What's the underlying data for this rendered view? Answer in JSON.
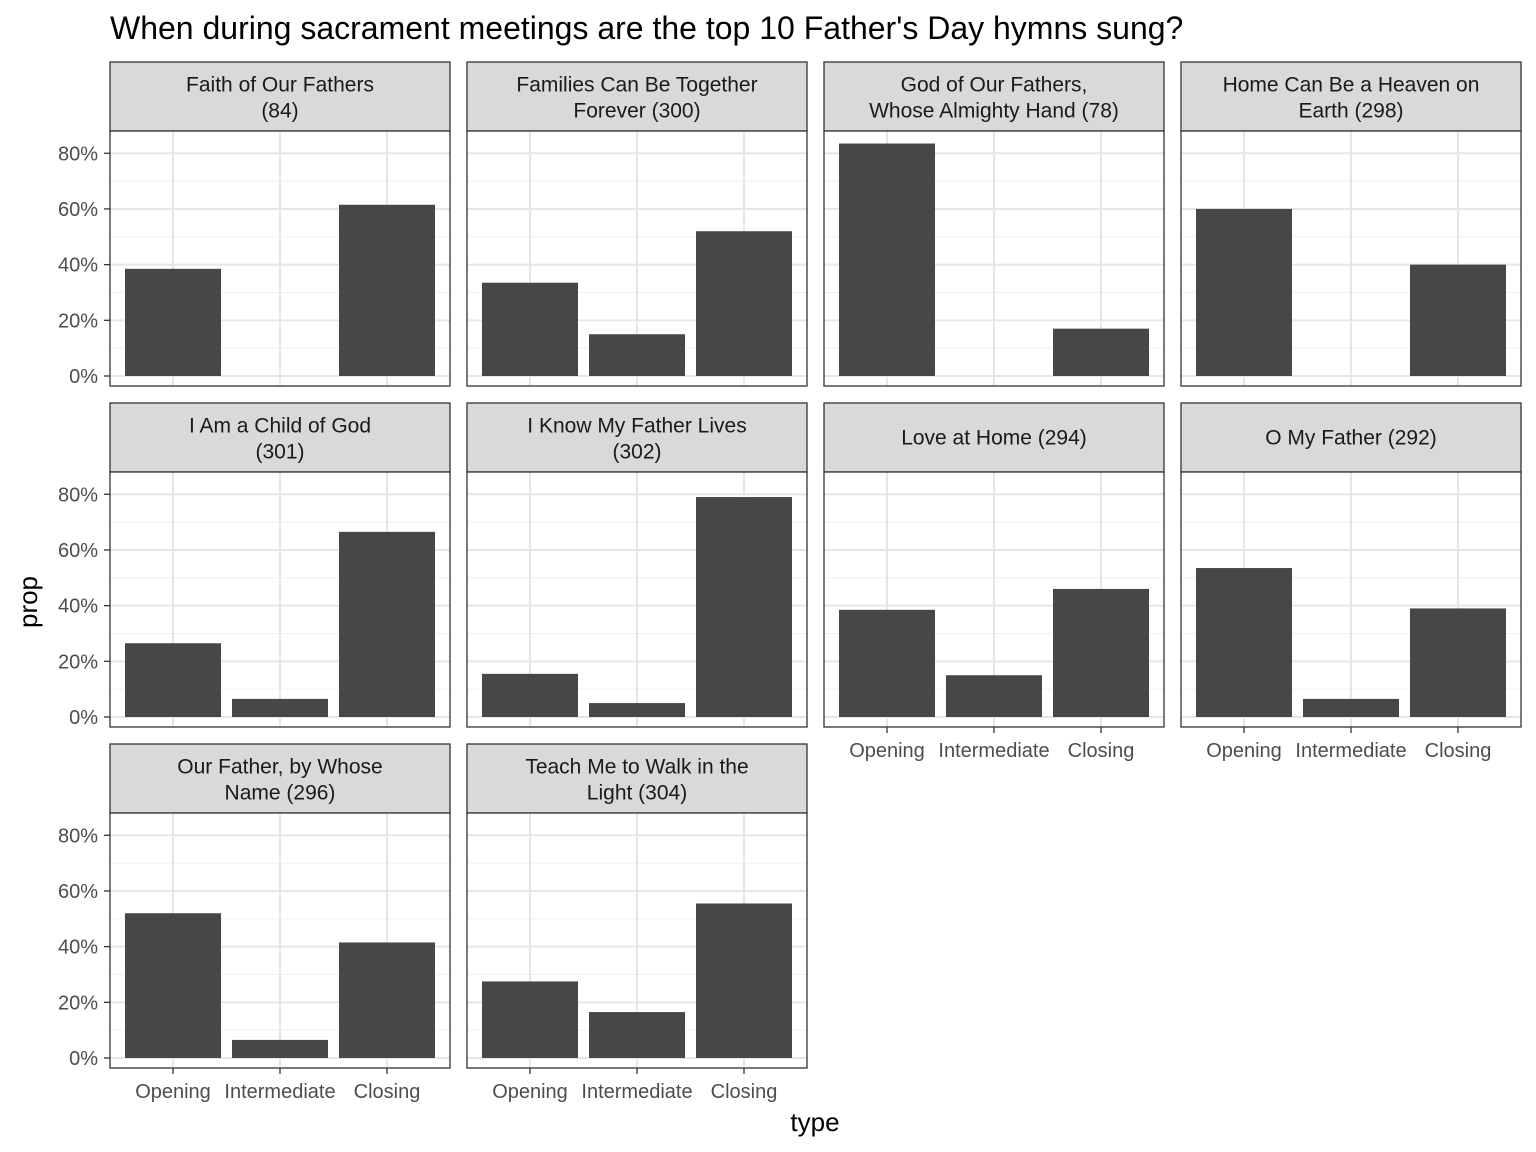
{
  "chart_data": {
    "type": "bar",
    "title": "When during sacrament meetings are the top 10 Father's Day hymns sung?",
    "xlabel": "type",
    "ylabel": "prop",
    "categories": [
      "Opening",
      "Intermediate",
      "Closing"
    ],
    "yticks": [
      "0%",
      "20%",
      "40%",
      "60%",
      "80%"
    ],
    "ylim": [
      0,
      0.88
    ],
    "grid": true,
    "bar_color": "#474747",
    "strip_color": "#d9d9d9",
    "panels": [
      {
        "label": [
          "Faith of Our Fathers",
          "(84)"
        ],
        "values": [
          0.385,
          0.0,
          0.615
        ]
      },
      {
        "label": [
          "Families Can Be Together",
          "Forever (300)"
        ],
        "values": [
          0.335,
          0.15,
          0.52
        ]
      },
      {
        "label": [
          "God of Our Fathers,",
          "Whose Almighty Hand (78)"
        ],
        "values": [
          0.835,
          0.0,
          0.17
        ]
      },
      {
        "label": [
          "Home Can Be a Heaven on",
          "Earth (298)"
        ],
        "values": [
          0.6,
          0.0,
          0.4
        ]
      },
      {
        "label": [
          "I Am a Child of God",
          "(301)"
        ],
        "values": [
          0.265,
          0.065,
          0.665
        ]
      },
      {
        "label": [
          "I Know My Father Lives",
          "(302)"
        ],
        "values": [
          0.155,
          0.05,
          0.79
        ]
      },
      {
        "label": [
          "Love at Home (294)"
        ],
        "values": [
          0.385,
          0.15,
          0.46
        ]
      },
      {
        "label": [
          "O My Father (292)"
        ],
        "values": [
          0.535,
          0.065,
          0.39
        ]
      },
      {
        "label": [
          "Our Father, by Whose",
          "Name (296)"
        ],
        "values": [
          0.52,
          0.065,
          0.415
        ]
      },
      {
        "label": [
          "Teach Me to Walk in the",
          "Light (304)"
        ],
        "values": [
          0.275,
          0.165,
          0.555
        ]
      }
    ]
  }
}
